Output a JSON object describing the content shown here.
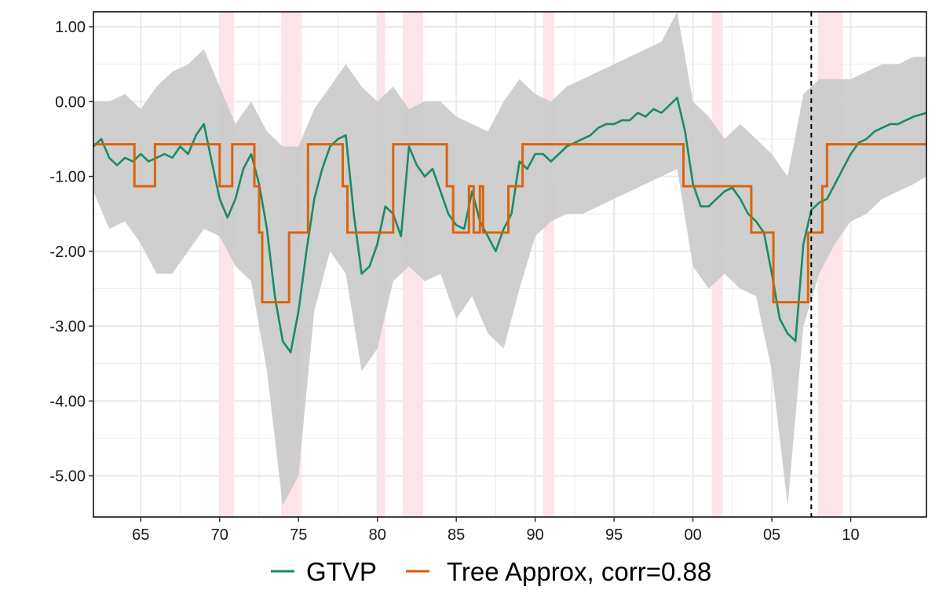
{
  "chart_data": {
    "type": "line",
    "title": "",
    "xlabel": "",
    "ylabel": "",
    "xlim": [
      1962.0,
      2014.8
    ],
    "ylim": [
      -5.55,
      1.2
    ],
    "x_ticks": [
      1965,
      1970,
      1975,
      1980,
      1985,
      1990,
      1995,
      2000,
      2005,
      2010
    ],
    "x_tick_labels": [
      "65",
      "70",
      "75",
      "80",
      "85",
      "90",
      "95",
      "00",
      "05",
      "10"
    ],
    "y_ticks": [
      1,
      0,
      -1,
      -2,
      -3,
      -4,
      -5
    ],
    "y_tick_labels": [
      "1.00",
      "0.00",
      "-1.00",
      "-2.00",
      "-3.00",
      "-4.00",
      "-5.00"
    ],
    "grid": true,
    "legend_position": "bottom",
    "recession_bands": [
      [
        1970.0,
        1970.9
      ],
      [
        1973.9,
        1975.2
      ],
      [
        1980.0,
        1980.5
      ],
      [
        1981.6,
        1982.9
      ],
      [
        1990.5,
        1991.2
      ],
      [
        2001.2,
        2001.9
      ],
      [
        2007.9,
        2009.5
      ]
    ],
    "vertical_marker": {
      "x": 2007.5,
      "style": "dashed",
      "color": "#000000"
    },
    "colors": {
      "gtvp": "#1b8a6b",
      "tree": "#d95f02",
      "band": "#c8c8c8",
      "recession": "#fde4e8",
      "grid": "#ebebeb"
    },
    "series": [
      {
        "name": "GTVP",
        "kind": "line",
        "x": [
          1962.0,
          1962.5,
          1963.0,
          1963.5,
          1964.0,
          1964.5,
          1965.0,
          1965.5,
          1966.0,
          1966.5,
          1967.0,
          1967.5,
          1968.0,
          1968.5,
          1969.0,
          1969.5,
          1970.0,
          1970.5,
          1971.0,
          1971.5,
          1972.0,
          1972.5,
          1973.0,
          1973.5,
          1974.0,
          1974.5,
          1975.0,
          1975.5,
          1976.0,
          1976.5,
          1977.0,
          1977.5,
          1978.0,
          1978.5,
          1979.0,
          1979.5,
          1980.0,
          1980.5,
          1981.0,
          1981.5,
          1982.0,
          1982.5,
          1983.0,
          1983.5,
          1984.0,
          1984.5,
          1985.0,
          1985.5,
          1986.0,
          1986.5,
          1987.0,
          1987.5,
          1988.0,
          1988.5,
          1989.0,
          1989.5,
          1990.0,
          1990.5,
          1991.0,
          1991.5,
          1992.0,
          1992.5,
          1993.0,
          1993.5,
          1994.0,
          1994.5,
          1995.0,
          1995.5,
          1996.0,
          1996.5,
          1997.0,
          1997.5,
          1998.0,
          1998.5,
          1999.0,
          1999.5,
          2000.0,
          2000.5,
          2001.0,
          2001.5,
          2002.0,
          2002.5,
          2003.0,
          2003.5,
          2004.0,
          2004.5,
          2005.0,
          2005.5,
          2006.0,
          2006.5,
          2007.0,
          2007.5,
          2008.0,
          2008.5,
          2009.0,
          2009.5,
          2010.0,
          2010.5,
          2011.0,
          2011.5,
          2012.0,
          2012.5,
          2013.0,
          2013.5,
          2014.0,
          2014.8
        ],
        "values": [
          -0.6,
          -0.5,
          -0.75,
          -0.85,
          -0.75,
          -0.8,
          -0.7,
          -0.8,
          -0.75,
          -0.7,
          -0.75,
          -0.6,
          -0.7,
          -0.45,
          -0.3,
          -0.8,
          -1.3,
          -1.55,
          -1.3,
          -0.9,
          -0.7,
          -1.1,
          -1.7,
          -2.6,
          -3.2,
          -3.35,
          -2.8,
          -2.0,
          -1.3,
          -0.9,
          -0.6,
          -0.5,
          -0.45,
          -1.5,
          -2.3,
          -2.2,
          -1.9,
          -1.4,
          -1.5,
          -1.8,
          -0.6,
          -0.85,
          -1.0,
          -0.9,
          -1.2,
          -1.5,
          -1.65,
          -1.7,
          -1.2,
          -1.6,
          -1.8,
          -2.0,
          -1.7,
          -1.5,
          -0.8,
          -0.9,
          -0.7,
          -0.7,
          -0.8,
          -0.7,
          -0.6,
          -0.55,
          -0.5,
          -0.45,
          -0.35,
          -0.3,
          -0.3,
          -0.25,
          -0.25,
          -0.15,
          -0.2,
          -0.1,
          -0.15,
          -0.05,
          0.05,
          -0.4,
          -1.1,
          -1.4,
          -1.4,
          -1.3,
          -1.2,
          -1.15,
          -1.3,
          -1.5,
          -1.6,
          -1.75,
          -2.3,
          -2.9,
          -3.1,
          -3.2,
          -1.9,
          -1.45,
          -1.35,
          -1.3,
          -1.1,
          -0.9,
          -0.7,
          -0.55,
          -0.5,
          -0.4,
          -0.35,
          -0.3,
          -0.3,
          -0.25,
          -0.2,
          -0.15
        ]
      },
      {
        "name": "Tree Approx, corr=0.88",
        "kind": "step",
        "x": [
          1962.0,
          1964.6,
          1964.6,
          1965.9,
          1965.9,
          1970.0,
          1970.0,
          1970.8,
          1970.8,
          1972.2,
          1972.2,
          1972.5,
          1972.5,
          1972.7,
          1972.7,
          1973.0,
          1973.0,
          1974.4,
          1974.4,
          1974.8,
          1974.8,
          1975.6,
          1975.6,
          1977.8,
          1977.8,
          1978.1,
          1978.1,
          1981.0,
          1981.0,
          1984.4,
          1984.4,
          1984.8,
          1984.8,
          1985.8,
          1985.8,
          1986.1,
          1986.1,
          1986.5,
          1986.5,
          1986.7,
          1986.7,
          1988.3,
          1988.3,
          1989.2,
          1989.2,
          1999.4,
          1999.4,
          2003.7,
          2003.7,
          2005.1,
          2005.1,
          2007.3,
          2007.3,
          2008.2,
          2008.2,
          2008.5,
          2008.5,
          2014.8
        ],
        "values": [
          -0.57,
          -0.57,
          -1.13,
          -1.13,
          -0.57,
          -0.57,
          -1.13,
          -1.13,
          -0.57,
          -0.57,
          -1.13,
          -1.13,
          -1.75,
          -1.75,
          -2.68,
          -2.68,
          -2.68,
          -2.68,
          -1.75,
          -1.75,
          -1.75,
          -1.75,
          -0.57,
          -0.57,
          -1.13,
          -1.13,
          -1.75,
          -1.75,
          -0.57,
          -0.57,
          -1.13,
          -1.13,
          -1.75,
          -1.75,
          -1.13,
          -1.13,
          -1.75,
          -1.75,
          -1.13,
          -1.13,
          -1.75,
          -1.75,
          -1.13,
          -1.13,
          -0.57,
          -0.57,
          -1.13,
          -1.13,
          -1.75,
          -1.75,
          -2.68,
          -2.68,
          -1.75,
          -1.75,
          -1.13,
          -1.13,
          -0.57,
          -0.57
        ]
      },
      {
        "name": "GTVP band",
        "kind": "band",
        "x": [
          1962.0,
          1963.0,
          1964.0,
          1965.0,
          1966.0,
          1967.0,
          1968.0,
          1969.0,
          1970.0,
          1971.0,
          1972.0,
          1973.0,
          1974.0,
          1975.0,
          1976.0,
          1977.0,
          1978.0,
          1979.0,
          1980.0,
          1981.0,
          1982.0,
          1983.0,
          1984.0,
          1985.0,
          1986.0,
          1987.0,
          1988.0,
          1989.0,
          1990.0,
          1991.0,
          1992.0,
          1993.0,
          1994.0,
          1995.0,
          1996.0,
          1997.0,
          1998.0,
          1999.0,
          2000.0,
          2001.0,
          2002.0,
          2003.0,
          2004.0,
          2005.0,
          2006.0,
          2007.0,
          2008.0,
          2009.0,
          2010.0,
          2011.0,
          2012.0,
          2013.0,
          2014.0,
          2014.8
        ],
        "lower": [
          -1.2,
          -1.7,
          -1.6,
          -1.9,
          -2.3,
          -2.3,
          -2.0,
          -1.7,
          -1.8,
          -2.2,
          -2.4,
          -3.6,
          -5.4,
          -5.0,
          -2.8,
          -2.0,
          -2.3,
          -3.6,
          -3.3,
          -2.4,
          -2.2,
          -2.4,
          -2.3,
          -2.9,
          -2.6,
          -3.1,
          -3.3,
          -2.5,
          -1.8,
          -1.6,
          -1.5,
          -1.5,
          -1.4,
          -1.3,
          -1.2,
          -1.1,
          -1.0,
          -0.9,
          -2.2,
          -2.5,
          -2.3,
          -2.5,
          -2.6,
          -3.6,
          -5.4,
          -3.0,
          -2.3,
          -1.9,
          -1.6,
          -1.5,
          -1.3,
          -1.2,
          -1.1,
          -1.0
        ],
        "upper": [
          0.0,
          0.0,
          0.1,
          -0.1,
          0.2,
          0.4,
          0.5,
          0.7,
          0.2,
          -0.3,
          0.0,
          -0.4,
          -0.6,
          -0.6,
          -0.1,
          0.2,
          0.5,
          0.2,
          0.0,
          0.2,
          -0.1,
          0.0,
          0.0,
          -0.2,
          -0.3,
          -0.4,
          0.0,
          0.3,
          0.1,
          0.0,
          0.2,
          0.3,
          0.4,
          0.5,
          0.6,
          0.7,
          0.8,
          1.2,
          0.0,
          -0.2,
          -0.5,
          -0.3,
          -0.5,
          -0.7,
          -1.0,
          0.1,
          0.3,
          0.3,
          0.3,
          0.4,
          0.5,
          0.5,
          0.6,
          0.6
        ]
      }
    ]
  }
}
